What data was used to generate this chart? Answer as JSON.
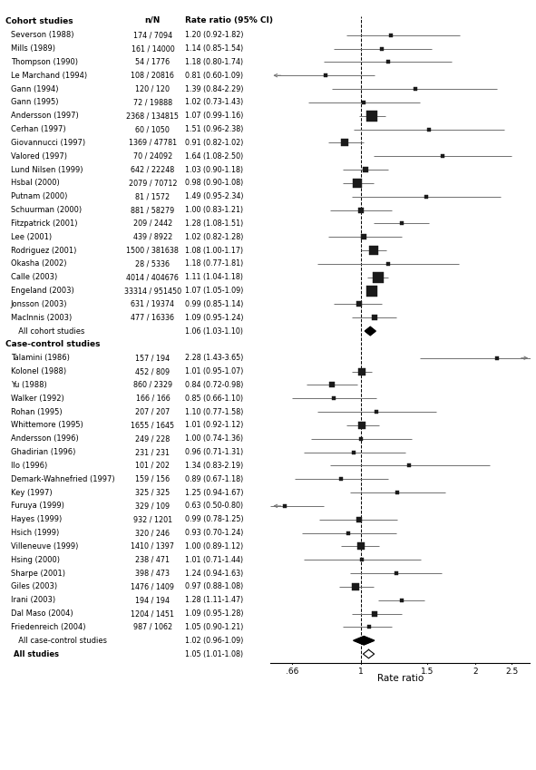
{
  "studies": [
    {
      "label": "Cohort studies",
      "type": "header"
    },
    {
      "label": "Severson (1988)",
      "nN": "174 / 7094",
      "rr": 1.2,
      "lo": 0.92,
      "hi": 1.82,
      "ci_text": "1.20 (0.92-1.82)",
      "type": "cohort",
      "weight": 3.5
    },
    {
      "label": "Mills (1989)",
      "nN": "161 / 14000",
      "rr": 1.14,
      "lo": 0.85,
      "hi": 1.54,
      "ci_text": "1.14 (0.85-1.54)",
      "type": "cohort",
      "weight": 3.5
    },
    {
      "label": "Thompson (1990)",
      "nN": "54 / 1776",
      "rr": 1.18,
      "lo": 0.8,
      "hi": 1.74,
      "ci_text": "1.18 (0.80-1.74)",
      "type": "cohort",
      "weight": 3.5
    },
    {
      "label": "Le Marchand (1994)",
      "nN": "108 / 20816",
      "rr": 0.81,
      "lo": 0.6,
      "hi": 1.09,
      "ci_text": "0.81 (0.60-1.09)",
      "type": "cohort",
      "weight": 3.5,
      "arrow_left": true
    },
    {
      "label": "Gann (1994)",
      "nN": "120 / 120",
      "rr": 1.39,
      "lo": 0.84,
      "hi": 2.29,
      "ci_text": "1.39 (0.84-2.29)",
      "type": "cohort",
      "weight": 3.5
    },
    {
      "label": "Gann (1995)",
      "nN": "72 / 19888",
      "rr": 1.02,
      "lo": 0.73,
      "hi": 1.43,
      "ci_text": "1.02 (0.73-1.43)",
      "type": "cohort",
      "weight": 3.5
    },
    {
      "label": "Andersson (1997)",
      "nN": "2368 / 134815",
      "rr": 1.07,
      "lo": 0.99,
      "hi": 1.16,
      "ci_text": "1.07 (0.99-1.16)",
      "type": "cohort",
      "weight": 8.0
    },
    {
      "label": "Cerhan (1997)",
      "nN": "60 / 1050",
      "rr": 1.51,
      "lo": 0.96,
      "hi": 2.38,
      "ci_text": "1.51 (0.96-2.38)",
      "type": "cohort",
      "weight": 3.5
    },
    {
      "label": "Giovannucci (1997)",
      "nN": "1369 / 47781",
      "rr": 0.91,
      "lo": 0.82,
      "hi": 1.02,
      "ci_text": "0.91 (0.82-1.02)",
      "type": "cohort",
      "weight": 5.5
    },
    {
      "label": "Valored (1997)",
      "nN": "70 / 24092",
      "rr": 1.64,
      "lo": 1.08,
      "hi": 2.5,
      "ci_text": "1.64 (1.08-2.50)",
      "type": "cohort",
      "weight": 3.5
    },
    {
      "label": "Lund Nilsen (1999)",
      "nN": "642 / 22248",
      "rr": 1.03,
      "lo": 0.9,
      "hi": 1.18,
      "ci_text": "1.03 (0.90-1.18)",
      "type": "cohort",
      "weight": 5.0
    },
    {
      "label": "Hsbal (2000)",
      "nN": "2079 / 70712",
      "rr": 0.98,
      "lo": 0.9,
      "hi": 1.08,
      "ci_text": "0.98 (0.90-1.08)",
      "type": "cohort",
      "weight": 7.5
    },
    {
      "label": "Putnam (2000)",
      "nN": "81 / 1572",
      "rr": 1.49,
      "lo": 0.95,
      "hi": 2.34,
      "ci_text": "1.49 (0.95-2.34)",
      "type": "cohort",
      "weight": 3.5
    },
    {
      "label": "Schuurman (2000)",
      "nN": "881 / 58279",
      "rr": 1.0,
      "lo": 0.83,
      "hi": 1.21,
      "ci_text": "1.00 (0.83-1.21)",
      "type": "cohort",
      "weight": 5.0
    },
    {
      "label": "Fitzpatrick (2001)",
      "nN": "209 / 2442",
      "rr": 1.28,
      "lo": 1.08,
      "hi": 1.51,
      "ci_text": "1.28 (1.08-1.51)",
      "type": "cohort",
      "weight": 3.5
    },
    {
      "label": "Lee (2001)",
      "nN": "439 / 8922",
      "rr": 1.02,
      "lo": 0.82,
      "hi": 1.28,
      "ci_text": "1.02 (0.82-1.28)",
      "type": "cohort",
      "weight": 4.0
    },
    {
      "label": "Rodriguez (2001)",
      "nN": "1500 / 381638",
      "rr": 1.08,
      "lo": 1.0,
      "hi": 1.17,
      "ci_text": "1.08 (1.00-1.17)",
      "type": "cohort",
      "weight": 7.5
    },
    {
      "label": "Okasha (2002)",
      "nN": "28 / 5336",
      "rr": 1.18,
      "lo": 0.77,
      "hi": 1.81,
      "ci_text": "1.18 (0.77-1.81)",
      "type": "cohort",
      "weight": 3.5
    },
    {
      "label": "Calle (2003)",
      "nN": "4014 / 404676",
      "rr": 1.11,
      "lo": 1.04,
      "hi": 1.18,
      "ci_text": "1.11 (1.04-1.18)",
      "type": "cohort",
      "weight": 8.0
    },
    {
      "label": "Engeland (2003)",
      "nN": "33314 / 951450",
      "rr": 1.07,
      "lo": 1.05,
      "hi": 1.09,
      "ci_text": "1.07 (1.05-1.09)",
      "type": "cohort",
      "weight": 9.0
    },
    {
      "label": "Jonsson (2003)",
      "nN": "631 / 19374",
      "rr": 0.99,
      "lo": 0.85,
      "hi": 1.14,
      "ci_text": "0.99 (0.85-1.14)",
      "type": "cohort",
      "weight": 5.0
    },
    {
      "label": "MacInnis (2003)",
      "nN": "477 / 16336",
      "rr": 1.09,
      "lo": 0.95,
      "hi": 1.24,
      "ci_text": "1.09 (0.95-1.24)",
      "type": "cohort",
      "weight": 4.0
    },
    {
      "label": "  All cohort studies",
      "nN": "",
      "rr": 1.06,
      "lo": 1.03,
      "hi": 1.1,
      "ci_text": "1.06 (1.03-1.10)",
      "type": "summary_cohort"
    },
    {
      "label": "Case-control studies",
      "type": "header"
    },
    {
      "label": "Talamini (1986)",
      "nN": "157 / 194",
      "rr": 2.28,
      "lo": 1.43,
      "hi": 3.65,
      "ci_text": "2.28 (1.43-3.65)",
      "type": "case-control",
      "weight": 3.5,
      "arrow_right": true
    },
    {
      "label": "Kolonel (1988)",
      "nN": "452 / 809",
      "rr": 1.01,
      "lo": 0.95,
      "hi": 1.07,
      "ci_text": "1.01 (0.95-1.07)",
      "type": "case-control",
      "weight": 5.5
    },
    {
      "label": "Yu (1988)",
      "nN": "860 / 2329",
      "rr": 0.84,
      "lo": 0.72,
      "hi": 0.98,
      "ci_text": "0.84 (0.72-0.98)",
      "type": "case-control",
      "weight": 5.0
    },
    {
      "label": "Walker (1992)",
      "nN": "166 / 166",
      "rr": 0.85,
      "lo": 0.66,
      "hi": 1.1,
      "ci_text": "0.85 (0.66-1.10)",
      "type": "case-control",
      "weight": 3.5
    },
    {
      "label": "Rohan (1995)",
      "nN": "207 / 207",
      "rr": 1.1,
      "lo": 0.77,
      "hi": 1.58,
      "ci_text": "1.10 (0.77-1.58)",
      "type": "case-control",
      "weight": 3.5
    },
    {
      "label": "Whittemore (1995)",
      "nN": "1655 / 1645",
      "rr": 1.01,
      "lo": 0.92,
      "hi": 1.12,
      "ci_text": "1.01 (0.92-1.12)",
      "type": "case-control",
      "weight": 5.5
    },
    {
      "label": "Andersson (1996)",
      "nN": "249 / 228",
      "rr": 1.0,
      "lo": 0.74,
      "hi": 1.36,
      "ci_text": "1.00 (0.74-1.36)",
      "type": "case-control",
      "weight": 3.5
    },
    {
      "label": "Ghadirian (1996)",
      "nN": "231 / 231",
      "rr": 0.96,
      "lo": 0.71,
      "hi": 1.31,
      "ci_text": "0.96 (0.71-1.31)",
      "type": "case-control",
      "weight": 3.5
    },
    {
      "label": "Ilo (1996)",
      "nN": "101 / 202",
      "rr": 1.34,
      "lo": 0.83,
      "hi": 2.19,
      "ci_text": "1.34 (0.83-2.19)",
      "type": "case-control",
      "weight": 3.5
    },
    {
      "label": "Demark-Wahnefried (1997)",
      "nN": "159 / 156",
      "rr": 0.89,
      "lo": 0.67,
      "hi": 1.18,
      "ci_text": "0.89 (0.67-1.18)",
      "type": "case-control",
      "weight": 3.5
    },
    {
      "label": "Key (1997)",
      "nN": "325 / 325",
      "rr": 1.25,
      "lo": 0.94,
      "hi": 1.67,
      "ci_text": "1.25 (0.94-1.67)",
      "type": "case-control",
      "weight": 3.5
    },
    {
      "label": "Furuya (1999)",
      "nN": "329 / 109",
      "rr": 0.63,
      "lo": 0.5,
      "hi": 0.8,
      "ci_text": "0.63 (0.50-0.80)",
      "type": "case-control",
      "weight": 3.5,
      "arrow_left": true
    },
    {
      "label": "Hayes (1999)",
      "nN": "932 / 1201",
      "rr": 0.99,
      "lo": 0.78,
      "hi": 1.25,
      "ci_text": "0.99 (0.78-1.25)",
      "type": "case-control",
      "weight": 5.0
    },
    {
      "label": "Hsich (1999)",
      "nN": "320 / 246",
      "rr": 0.93,
      "lo": 0.7,
      "hi": 1.24,
      "ci_text": "0.93 (0.70-1.24)",
      "type": "case-control",
      "weight": 3.5
    },
    {
      "label": "Villeneuve (1999)",
      "nN": "1410 / 1397",
      "rr": 1.0,
      "lo": 0.89,
      "hi": 1.12,
      "ci_text": "1.00 (0.89-1.12)",
      "type": "case-control",
      "weight": 5.5
    },
    {
      "label": "Hsing (2000)",
      "nN": "238 / 471",
      "rr": 1.01,
      "lo": 0.71,
      "hi": 1.44,
      "ci_text": "1.01 (0.71-1.44)",
      "type": "case-control",
      "weight": 3.5
    },
    {
      "label": "Sharpe (2001)",
      "nN": "398 / 473",
      "rr": 1.24,
      "lo": 0.94,
      "hi": 1.63,
      "ci_text": "1.24 (0.94-1.63)",
      "type": "case-control",
      "weight": 3.5
    },
    {
      "label": "Giles (2003)",
      "nN": "1476 / 1409",
      "rr": 0.97,
      "lo": 0.88,
      "hi": 1.08,
      "ci_text": "0.97 (0.88-1.08)",
      "type": "case-control",
      "weight": 5.5
    },
    {
      "label": "Irani (2003)",
      "nN": "194 / 194",
      "rr": 1.28,
      "lo": 1.11,
      "hi": 1.47,
      "ci_text": "1.28 (1.11-1.47)",
      "type": "case-control",
      "weight": 3.5
    },
    {
      "label": "Dal Maso (2004)",
      "nN": "1204 / 1451",
      "rr": 1.09,
      "lo": 0.95,
      "hi": 1.28,
      "ci_text": "1.09 (0.95-1.28)",
      "type": "case-control",
      "weight": 5.0
    },
    {
      "label": "Friedenreich (2004)",
      "nN": "987 / 1062",
      "rr": 1.05,
      "lo": 0.9,
      "hi": 1.21,
      "ci_text": "1.05 (0.90-1.21)",
      "type": "case-control",
      "weight": 3.5
    },
    {
      "label": "  All case-control studies",
      "nN": "",
      "rr": 1.02,
      "lo": 0.96,
      "hi": 1.09,
      "ci_text": "1.02 (0.96-1.09)",
      "type": "summary_cc"
    },
    {
      "label": "All studies",
      "nN": "",
      "rr": 1.05,
      "lo": 1.01,
      "hi": 1.08,
      "ci_text": "1.05 (1.01-1.08)",
      "type": "overall"
    }
  ],
  "xticks": [
    0.66,
    1.0,
    1.5,
    2.0,
    2.5
  ],
  "xtick_labels": [
    ".66",
    "1",
    "1.5",
    "2",
    "2.5"
  ],
  "xlabel": "Rate ratio",
  "xmin": 0.58,
  "xmax": 2.8,
  "ref_line": 1.0,
  "col_header_nN": "n/N",
  "col_header_ci": "Rate ratio (95% CI)",
  "label_fontsize": 6.0,
  "header_fontsize": 6.5,
  "ci_fontsize": 5.8,
  "nN_fontsize": 5.8
}
